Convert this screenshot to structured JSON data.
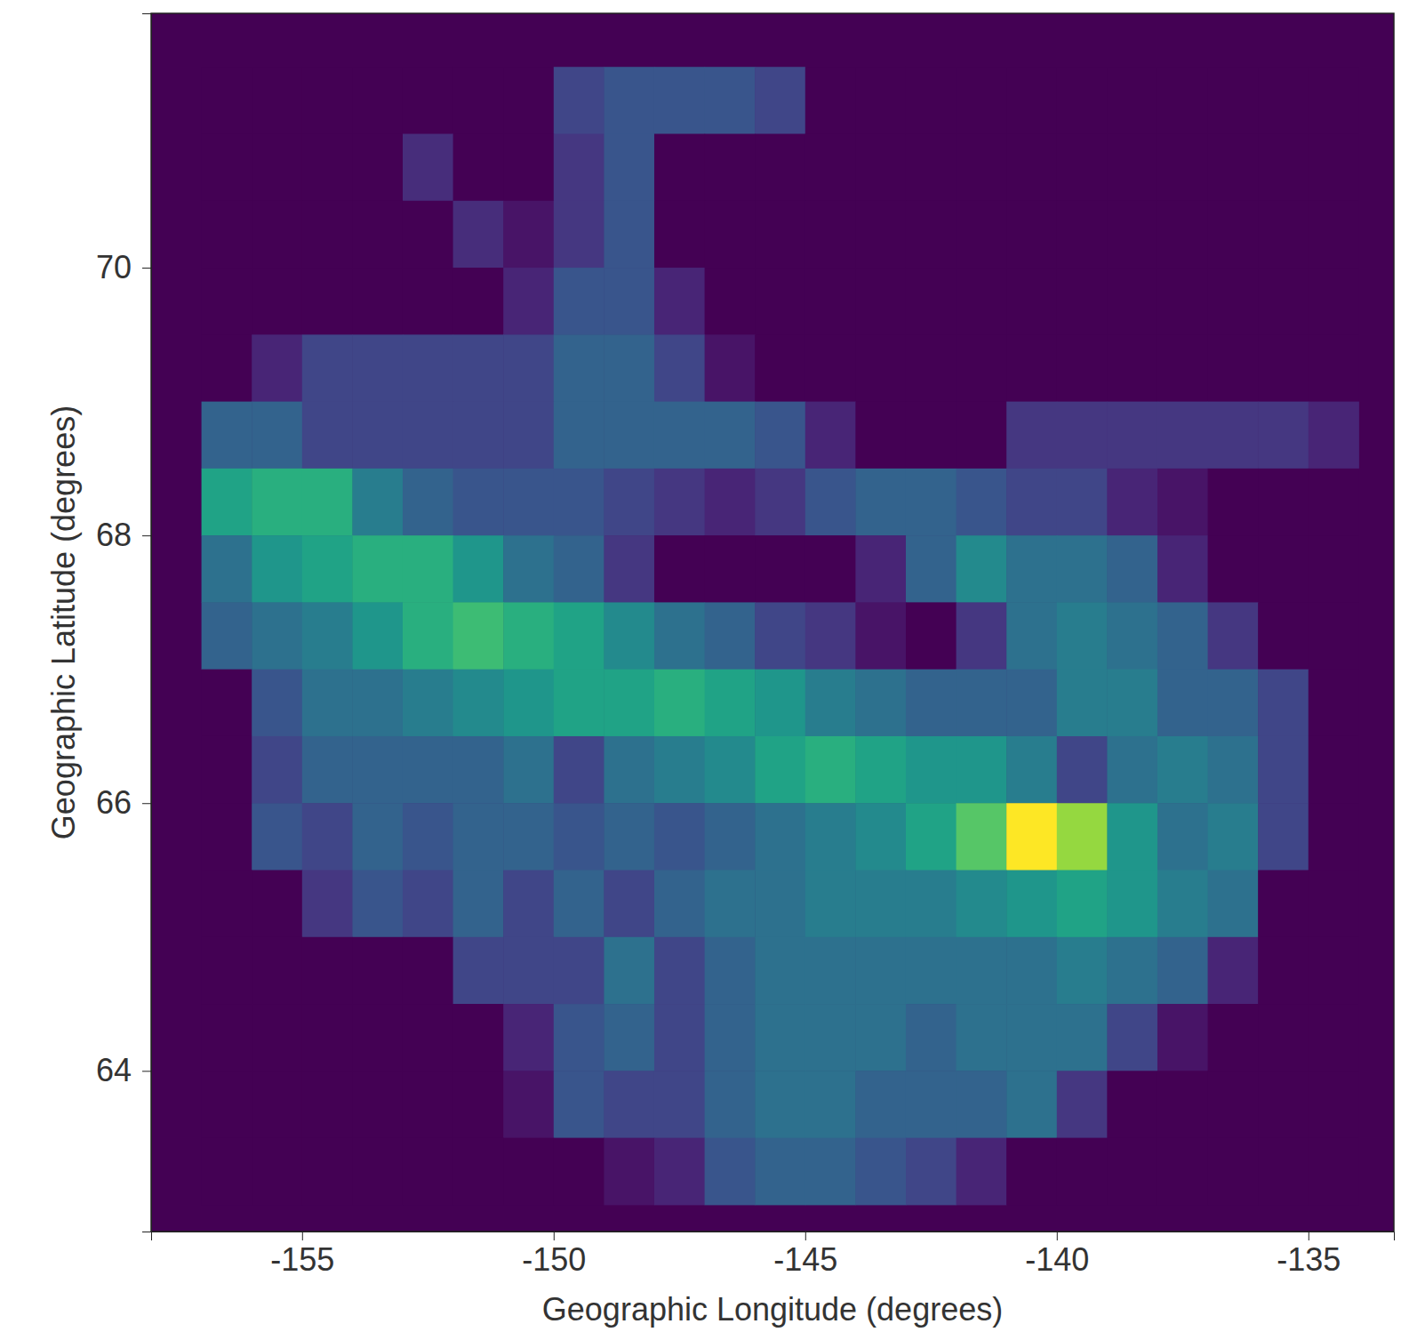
{
  "chart_data": {
    "type": "heatmap",
    "x_label": "Geographic Longitude (degrees)",
    "y_label": "Geographic Latitude (degrees)",
    "color": "viridis",
    "xlim": [
      -158,
      -133.3
    ],
    "ylim": [
      62.8,
      71.9
    ],
    "xticks": [
      -155,
      -150,
      -145,
      -140,
      -135
    ],
    "yticks": [
      64,
      66,
      68,
      70
    ],
    "x": [
      -156.5,
      -155.5,
      -154.5,
      -153.5,
      -152.5,
      -151.5,
      -150.5,
      -149.5,
      -148.5,
      -147.5,
      -146.5,
      -145.5,
      -144.5,
      -143.5,
      -142.5,
      -141.5,
      -140.5,
      -139.5,
      -138.5,
      -137.5,
      -136.5,
      -135.5,
      -134.5
    ],
    "y": [
      71.25,
      70.75,
      70.25,
      69.75,
      69.25,
      68.75,
      68.25,
      67.75,
      67.25,
      66.75,
      66.25,
      65.75,
      65.25,
      64.75,
      64.25,
      63.75,
      63.25
    ],
    "values": [
      [
        0,
        0,
        0,
        0,
        0,
        0,
        0,
        0.2,
        0.25,
        0.25,
        0.25,
        0.2,
        0,
        0,
        0,
        0,
        0,
        0,
        0,
        0,
        0,
        0,
        0
      ],
      [
        0,
        0,
        0,
        0,
        0.12,
        0,
        0,
        0.15,
        0.25,
        0,
        0,
        0,
        0,
        0,
        0,
        0,
        0,
        0,
        0,
        0,
        0,
        0,
        0
      ],
      [
        0,
        0,
        0,
        0,
        0,
        0.12,
        0.05,
        0.15,
        0.25,
        0,
        0,
        0,
        0,
        0,
        0,
        0,
        0,
        0,
        0,
        0,
        0,
        0,
        0
      ],
      [
        0,
        0,
        0,
        0,
        0,
        0,
        0.1,
        0.25,
        0.25,
        0.1,
        0,
        0,
        0,
        0,
        0,
        0,
        0,
        0,
        0,
        0,
        0,
        0,
        0
      ],
      [
        0,
        0.1,
        0.2,
        0.2,
        0.2,
        0.2,
        0.2,
        0.3,
        0.3,
        0.2,
        0.05,
        0,
        0,
        0,
        0,
        0,
        0,
        0,
        0,
        0,
        0,
        0,
        0
      ],
      [
        0.3,
        0.3,
        0.2,
        0.2,
        0.2,
        0.2,
        0.2,
        0.3,
        0.3,
        0.3,
        0.3,
        0.25,
        0.1,
        0,
        0,
        0,
        0.15,
        0.15,
        0.15,
        0.15,
        0.15,
        0.15,
        0.1
      ],
      [
        0.55,
        0.6,
        0.6,
        0.4,
        0.3,
        0.25,
        0.25,
        0.25,
        0.2,
        0.15,
        0.1,
        0.15,
        0.25,
        0.3,
        0.3,
        0.25,
        0.2,
        0.2,
        0.1,
        0.05,
        0,
        0,
        0
      ],
      [
        0.35,
        0.5,
        0.55,
        0.6,
        0.6,
        0.5,
        0.35,
        0.3,
        0.15,
        0,
        0,
        0,
        0,
        0.1,
        0.3,
        0.45,
        0.35,
        0.35,
        0.3,
        0.1,
        0,
        0,
        0
      ],
      [
        0.3,
        0.35,
        0.4,
        0.5,
        0.6,
        0.65,
        0.6,
        0.55,
        0.45,
        0.35,
        0.3,
        0.2,
        0.15,
        0.05,
        0,
        0.15,
        0.35,
        0.4,
        0.35,
        0.3,
        0.15,
        0,
        0
      ],
      [
        0,
        0.25,
        0.35,
        0.35,
        0.4,
        0.45,
        0.5,
        0.55,
        0.55,
        0.6,
        0.55,
        0.5,
        0.4,
        0.35,
        0.3,
        0.3,
        0.3,
        0.4,
        0.4,
        0.3,
        0.3,
        0.2,
        0
      ],
      [
        0,
        0.2,
        0.3,
        0.3,
        0.3,
        0.3,
        0.35,
        0.2,
        0.35,
        0.4,
        0.45,
        0.55,
        0.6,
        0.55,
        0.5,
        0.5,
        0.4,
        0.2,
        0.35,
        0.4,
        0.35,
        0.2,
        0
      ],
      [
        0,
        0.25,
        0.2,
        0.3,
        0.25,
        0.3,
        0.3,
        0.25,
        0.3,
        0.25,
        0.3,
        0.35,
        0.4,
        0.45,
        0.55,
        0.7,
        0.95,
        0.8,
        0.5,
        0.35,
        0.4,
        0.2,
        0
      ],
      [
        0,
        0,
        0.15,
        0.25,
        0.2,
        0.3,
        0.2,
        0.3,
        0.2,
        0.3,
        0.35,
        0.35,
        0.4,
        0.4,
        0.4,
        0.45,
        0.5,
        0.55,
        0.5,
        0.4,
        0.35,
        0,
        0
      ],
      [
        0,
        0,
        0,
        0,
        0,
        0.2,
        0.2,
        0.2,
        0.35,
        0.2,
        0.3,
        0.35,
        0.35,
        0.35,
        0.35,
        0.35,
        0.35,
        0.4,
        0.35,
        0.3,
        0.1,
        0,
        0
      ],
      [
        0,
        0,
        0,
        0,
        0,
        0,
        0.1,
        0.25,
        0.3,
        0.2,
        0.3,
        0.35,
        0.35,
        0.35,
        0.3,
        0.35,
        0.35,
        0.35,
        0.2,
        0.05,
        0,
        0,
        0
      ],
      [
        0,
        0,
        0,
        0,
        0,
        0,
        0.05,
        0.25,
        0.2,
        0.2,
        0.3,
        0.35,
        0.35,
        0.3,
        0.3,
        0.3,
        0.35,
        0.15,
        0,
        0,
        0,
        0,
        0
      ],
      [
        0,
        0,
        0,
        0,
        0,
        0,
        0,
        0,
        0.05,
        0.1,
        0.25,
        0.3,
        0.3,
        0.25,
        0.2,
        0.1,
        0,
        0,
        0,
        0,
        0,
        0,
        0
      ]
    ]
  }
}
